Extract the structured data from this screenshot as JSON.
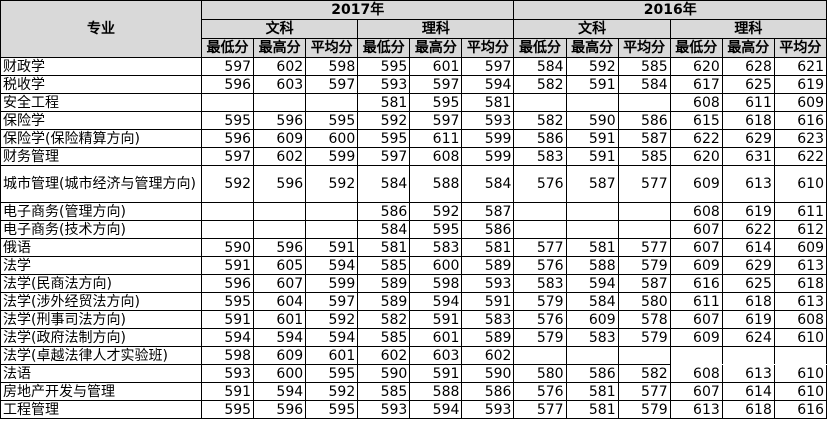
{
  "header": {
    "major_label": "专业",
    "years": [
      "2017年",
      "2016年"
    ],
    "tracks": [
      "文科",
      "理科",
      "文科",
      "理科"
    ],
    "metrics": [
      "最低分",
      "最高分",
      "平均分"
    ]
  },
  "rows": [
    {
      "name": "财政学",
      "scores": [
        "597",
        "602",
        "598",
        "595",
        "601",
        "597",
        "584",
        "592",
        "585",
        "620",
        "628",
        "621"
      ]
    },
    {
      "name": "税收学",
      "scores": [
        "596",
        "603",
        "597",
        "593",
        "597",
        "594",
        "582",
        "591",
        "584",
        "617",
        "625",
        "619"
      ]
    },
    {
      "name": "安全工程",
      "scores": [
        "",
        "",
        "",
        "581",
        "595",
        "581",
        "",
        "",
        "",
        "608",
        "611",
        "609"
      ]
    },
    {
      "name": "保险学",
      "scores": [
        "595",
        "596",
        "595",
        "592",
        "597",
        "593",
        "582",
        "590",
        "586",
        "615",
        "618",
        "616"
      ]
    },
    {
      "name": "保险学(保险精算方向)",
      "scores": [
        "596",
        "609",
        "600",
        "595",
        "611",
        "599",
        "586",
        "591",
        "587",
        "622",
        "629",
        "623"
      ]
    },
    {
      "name": "财务管理",
      "scores": [
        "597",
        "602",
        "599",
        "597",
        "608",
        "599",
        "583",
        "591",
        "585",
        "620",
        "631",
        "622"
      ]
    },
    {
      "name": "城市管理(城市经济与管理方向)",
      "scores": [
        "592",
        "596",
        "592",
        "584",
        "588",
        "584",
        "576",
        "587",
        "577",
        "609",
        "613",
        "610"
      ]
    },
    {
      "name": "电子商务(管理方向)",
      "scores": [
        "",
        "",
        "",
        "586",
        "592",
        "587",
        "",
        "",
        "",
        "608",
        "619",
        "611"
      ]
    },
    {
      "name": "电子商务(技术方向)",
      "scores": [
        "",
        "",
        "",
        "584",
        "595",
        "586",
        "",
        "",
        "",
        "607",
        "622",
        "612"
      ]
    },
    {
      "name": "俄语",
      "scores": [
        "590",
        "596",
        "591",
        "581",
        "583",
        "581",
        "577",
        "581",
        "577",
        "607",
        "614",
        "609"
      ]
    },
    {
      "name": "法学",
      "scores": [
        "591",
        "605",
        "594",
        "585",
        "600",
        "589",
        "576",
        "588",
        "579",
        "609",
        "629",
        "613"
      ]
    },
    {
      "name": "法学(民商法方向)",
      "scores": [
        "596",
        "607",
        "599",
        "589",
        "598",
        "593",
        "583",
        "594",
        "587",
        "616",
        "625",
        "618"
      ]
    },
    {
      "name": "法学(涉外经贸法方向)",
      "scores": [
        "595",
        "604",
        "597",
        "589",
        "594",
        "591",
        "579",
        "584",
        "580",
        "611",
        "618",
        "613"
      ]
    },
    {
      "name": "法学(刑事司法方向)",
      "scores": [
        "591",
        "601",
        "592",
        "582",
        "591",
        "583",
        "576",
        "609",
        "578",
        "607",
        "619",
        "608"
      ]
    },
    {
      "name": "法学(政府法制方向)",
      "scores": [
        "594",
        "594",
        "594",
        "585",
        "601",
        "589",
        "579",
        "583",
        "579",
        "609",
        "624",
        "610"
      ]
    },
    {
      "name": "法学(卓越法律人才实验班)",
      "scores": [
        "598",
        "609",
        "601",
        "602",
        "603",
        "602",
        "",
        "",
        "",
        "",
        "",
        ""
      ]
    },
    {
      "name": "法语",
      "scores": [
        "593",
        "600",
        "595",
        "590",
        "591",
        "590",
        "580",
        "586",
        "582",
        "608",
        "613",
        "610"
      ]
    },
    {
      "name": "房地产开发与管理",
      "scores": [
        "591",
        "594",
        "592",
        "585",
        "588",
        "586",
        "576",
        "581",
        "577",
        "607",
        "614",
        "610"
      ]
    },
    {
      "name": "工程管理",
      "scores": [
        "595",
        "596",
        "595",
        "593",
        "594",
        "593",
        "577",
        "581",
        "579",
        "613",
        "618",
        "616"
      ]
    }
  ]
}
